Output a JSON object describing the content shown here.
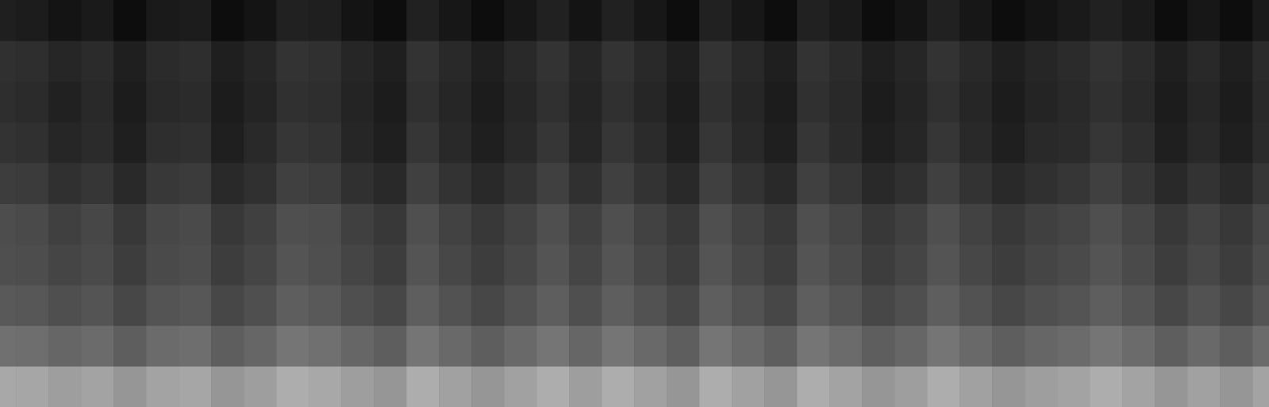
{
  "chart_data": {
    "type": "heatmap",
    "tick_labels": false,
    "color_range": [
      0,
      100
    ],
    "cells": [
      [
        12,
        11,
        8,
        10,
        5,
        10,
        11,
        5,
        8,
        13,
        12,
        8,
        5,
        13,
        9,
        5,
        9,
        13,
        8,
        13,
        9,
        5,
        13,
        9,
        5,
        13,
        10,
        5,
        8,
        13,
        9,
        5,
        8,
        10,
        13,
        10,
        5,
        9,
        5,
        10
      ],
      [
        19,
        18,
        15,
        17,
        12,
        17,
        18,
        12,
        15,
        20,
        19,
        15,
        12,
        20,
        16,
        12,
        16,
        20,
        15,
        20,
        16,
        12,
        20,
        16,
        12,
        20,
        17,
        12,
        15,
        20,
        16,
        12,
        15,
        17,
        20,
        17,
        12,
        16,
        12,
        17
      ],
      [
        18,
        17,
        13,
        16,
        11,
        16,
        17,
        11,
        14,
        19,
        18,
        14,
        11,
        19,
        15,
        11,
        15,
        19,
        14,
        19,
        15,
        11,
        19,
        15,
        11,
        19,
        16,
        11,
        14,
        19,
        15,
        11,
        14,
        16,
        19,
        16,
        11,
        15,
        11,
        16
      ],
      [
        20,
        19,
        15,
        17,
        12,
        18,
        19,
        12,
        16,
        21,
        20,
        15,
        12,
        21,
        16,
        12,
        16,
        21,
        15,
        21,
        17,
        12,
        21,
        16,
        12,
        21,
        17,
        12,
        15,
        21,
        16,
        12,
        16,
        17,
        21,
        18,
        12,
        16,
        12,
        17
      ],
      [
        24,
        23,
        19,
        21,
        16,
        22,
        23,
        16,
        19,
        25,
        24,
        19,
        16,
        25,
        20,
        16,
        20,
        25,
        19,
        25,
        20,
        16,
        25,
        20,
        16,
        25,
        21,
        16,
        19,
        25,
        20,
        16,
        19,
        21,
        25,
        21,
        16,
        20,
        16,
        21
      ],
      [
        30,
        29,
        25,
        28,
        22,
        28,
        29,
        22,
        25,
        31,
        30,
        25,
        22,
        31,
        26,
        22,
        26,
        31,
        25,
        31,
        26,
        22,
        31,
        26,
        22,
        31,
        27,
        22,
        25,
        31,
        26,
        22,
        25,
        27,
        31,
        27,
        22,
        26,
        22,
        27
      ],
      [
        31,
        30,
        27,
        29,
        24,
        29,
        30,
        24,
        27,
        33,
        31,
        27,
        24,
        33,
        28,
        24,
        28,
        33,
        27,
        33,
        28,
        24,
        33,
        28,
        24,
        33,
        29,
        24,
        27,
        33,
        28,
        24,
        27,
        29,
        33,
        29,
        24,
        28,
        24,
        29
      ],
      [
        35,
        34,
        31,
        33,
        28,
        33,
        34,
        28,
        31,
        37,
        35,
        31,
        28,
        37,
        32,
        28,
        32,
        37,
        31,
        37,
        32,
        28,
        37,
        32,
        28,
        37,
        33,
        28,
        31,
        37,
        32,
        28,
        31,
        33,
        37,
        33,
        28,
        32,
        28,
        33
      ],
      [
        44,
        43,
        40,
        42,
        37,
        42,
        43,
        37,
        40,
        46,
        44,
        40,
        37,
        46,
        41,
        37,
        41,
        46,
        40,
        46,
        41,
        37,
        46,
        41,
        37,
        46,
        42,
        37,
        40,
        46,
        41,
        37,
        40,
        42,
        46,
        42,
        37,
        41,
        37,
        42
      ],
      [
        66,
        65,
        62,
        64,
        59,
        64,
        65,
        59,
        62,
        68,
        66,
        62,
        59,
        68,
        63,
        59,
        63,
        68,
        62,
        68,
        63,
        59,
        68,
        63,
        59,
        68,
        64,
        59,
        62,
        68,
        63,
        59,
        62,
        64,
        68,
        64,
        59,
        63,
        59,
        64
      ]
    ]
  }
}
